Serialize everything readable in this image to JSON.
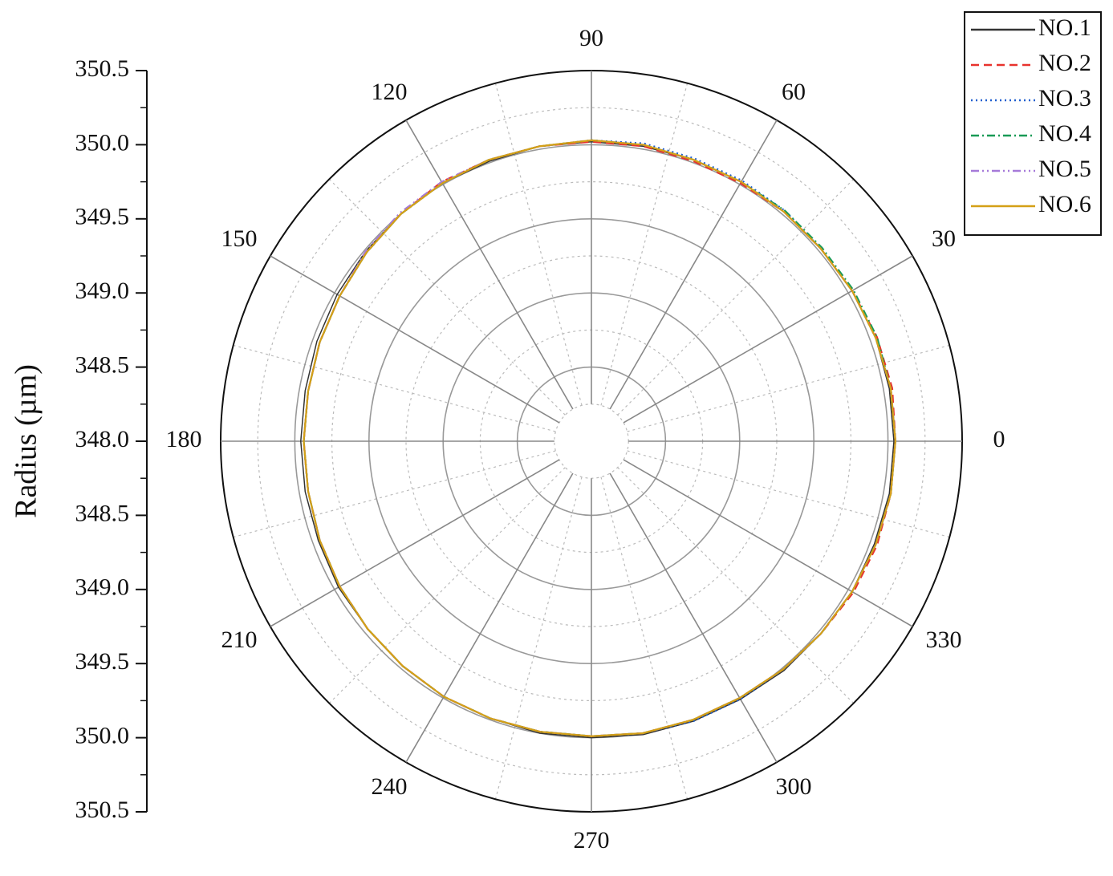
{
  "chart_data": {
    "type": "polar",
    "y_label": "Radius (µm)",
    "x": [
      0,
      10,
      20,
      30,
      40,
      50,
      60,
      70,
      80,
      90,
      100,
      110,
      120,
      130,
      140,
      150,
      160,
      170,
      180,
      190,
      200,
      210,
      220,
      230,
      240,
      250,
      260,
      270,
      280,
      290,
      300,
      310,
      320,
      330,
      340,
      350
    ],
    "xticks": [
      0,
      30,
      60,
      90,
      120,
      150,
      180,
      210,
      240,
      270,
      300,
      330
    ],
    "ylim": [
      348.0,
      350.5
    ],
    "yticks": [
      {
        "value": 348.0,
        "label": "348.0"
      },
      {
        "value": 348.5,
        "label": "348.5"
      },
      {
        "value": 349.0,
        "label": "349.0"
      },
      {
        "value": 349.5,
        "label": "349.5"
      },
      {
        "value": 350.0,
        "label": "350.0"
      },
      {
        "value": 350.5,
        "label": "350.5"
      }
    ],
    "grid": true,
    "legend": "upper right",
    "series": [
      {
        "name": "NO.1",
        "color": "#333333",
        "dash": "solid",
        "values": [
          350.04,
          350.04,
          350.04,
          350.03,
          350.02,
          350.02,
          350.02,
          350.02,
          350.02,
          350.02,
          350.02,
          350.01,
          350.01,
          350.0,
          349.99,
          349.98,
          349.97,
          349.96,
          349.96,
          349.96,
          349.96,
          349.97,
          349.97,
          349.98,
          349.99,
          349.99,
          350.0,
          350.0,
          350.01,
          350.01,
          350.01,
          350.02,
          350.02,
          350.03,
          350.03,
          350.04
        ]
      },
      {
        "name": "NO.2",
        "color": "#e8322d",
        "dash": "dashed",
        "values": [
          350.05,
          350.06,
          350.05,
          350.03,
          350.02,
          350.02,
          350.01,
          350.01,
          350.02,
          350.02,
          350.02,
          350.02,
          350.02,
          350.0,
          349.98,
          349.96,
          349.95,
          349.94,
          349.94,
          349.94,
          349.95,
          349.96,
          349.97,
          349.98,
          349.99,
          349.99,
          349.99,
          349.99,
          350.0,
          350.0,
          350.0,
          350.01,
          350.02,
          350.04,
          350.05,
          350.05
        ]
      },
      {
        "name": "NO.3",
        "color": "#1f5fcf",
        "dash": "dotted",
        "values": [
          350.05,
          350.05,
          350.04,
          350.03,
          350.02,
          350.03,
          350.03,
          350.03,
          350.04,
          350.03,
          350.02,
          350.02,
          350.01,
          350.0,
          349.98,
          349.96,
          349.95,
          349.94,
          349.94,
          349.94,
          349.95,
          349.96,
          349.97,
          349.98,
          349.99,
          349.99,
          349.99,
          349.99,
          350.0,
          350.01,
          350.01,
          350.01,
          350.02,
          350.03,
          350.04,
          350.05
        ]
      },
      {
        "name": "NO.4",
        "color": "#199a56",
        "dash": "dashdot",
        "values": [
          350.05,
          350.05,
          350.05,
          350.04,
          350.03,
          350.03,
          350.02,
          350.02,
          350.03,
          350.03,
          350.02,
          350.02,
          350.01,
          350.0,
          349.98,
          349.96,
          349.95,
          349.94,
          349.94,
          349.94,
          349.95,
          349.96,
          349.97,
          349.98,
          349.99,
          349.99,
          349.99,
          349.99,
          350.0,
          350.0,
          350.0,
          350.01,
          350.02,
          350.03,
          350.04,
          350.05
        ]
      },
      {
        "name": "NO.5",
        "color": "#a67ad9",
        "dash": "dashdotdot",
        "values": [
          350.05,
          350.05,
          350.04,
          350.03,
          350.02,
          350.02,
          350.02,
          350.02,
          350.03,
          350.03,
          350.02,
          350.02,
          350.02,
          350.01,
          349.99,
          349.96,
          349.95,
          349.94,
          349.94,
          349.94,
          349.95,
          349.96,
          349.97,
          349.98,
          349.99,
          349.99,
          349.99,
          349.99,
          350.0,
          350.0,
          350.0,
          350.01,
          350.02,
          350.03,
          350.04,
          350.05
        ]
      },
      {
        "name": "NO.6",
        "color": "#d4a017",
        "dash": "solid",
        "values": [
          350.05,
          350.05,
          350.04,
          350.03,
          350.02,
          350.02,
          350.02,
          350.02,
          350.03,
          350.03,
          350.02,
          350.02,
          350.01,
          350.0,
          349.98,
          349.96,
          349.95,
          349.94,
          349.94,
          349.94,
          349.95,
          349.96,
          349.97,
          349.98,
          349.99,
          349.99,
          349.99,
          349.99,
          350.0,
          350.0,
          350.0,
          350.01,
          350.02,
          350.03,
          350.04,
          350.05
        ]
      }
    ]
  }
}
